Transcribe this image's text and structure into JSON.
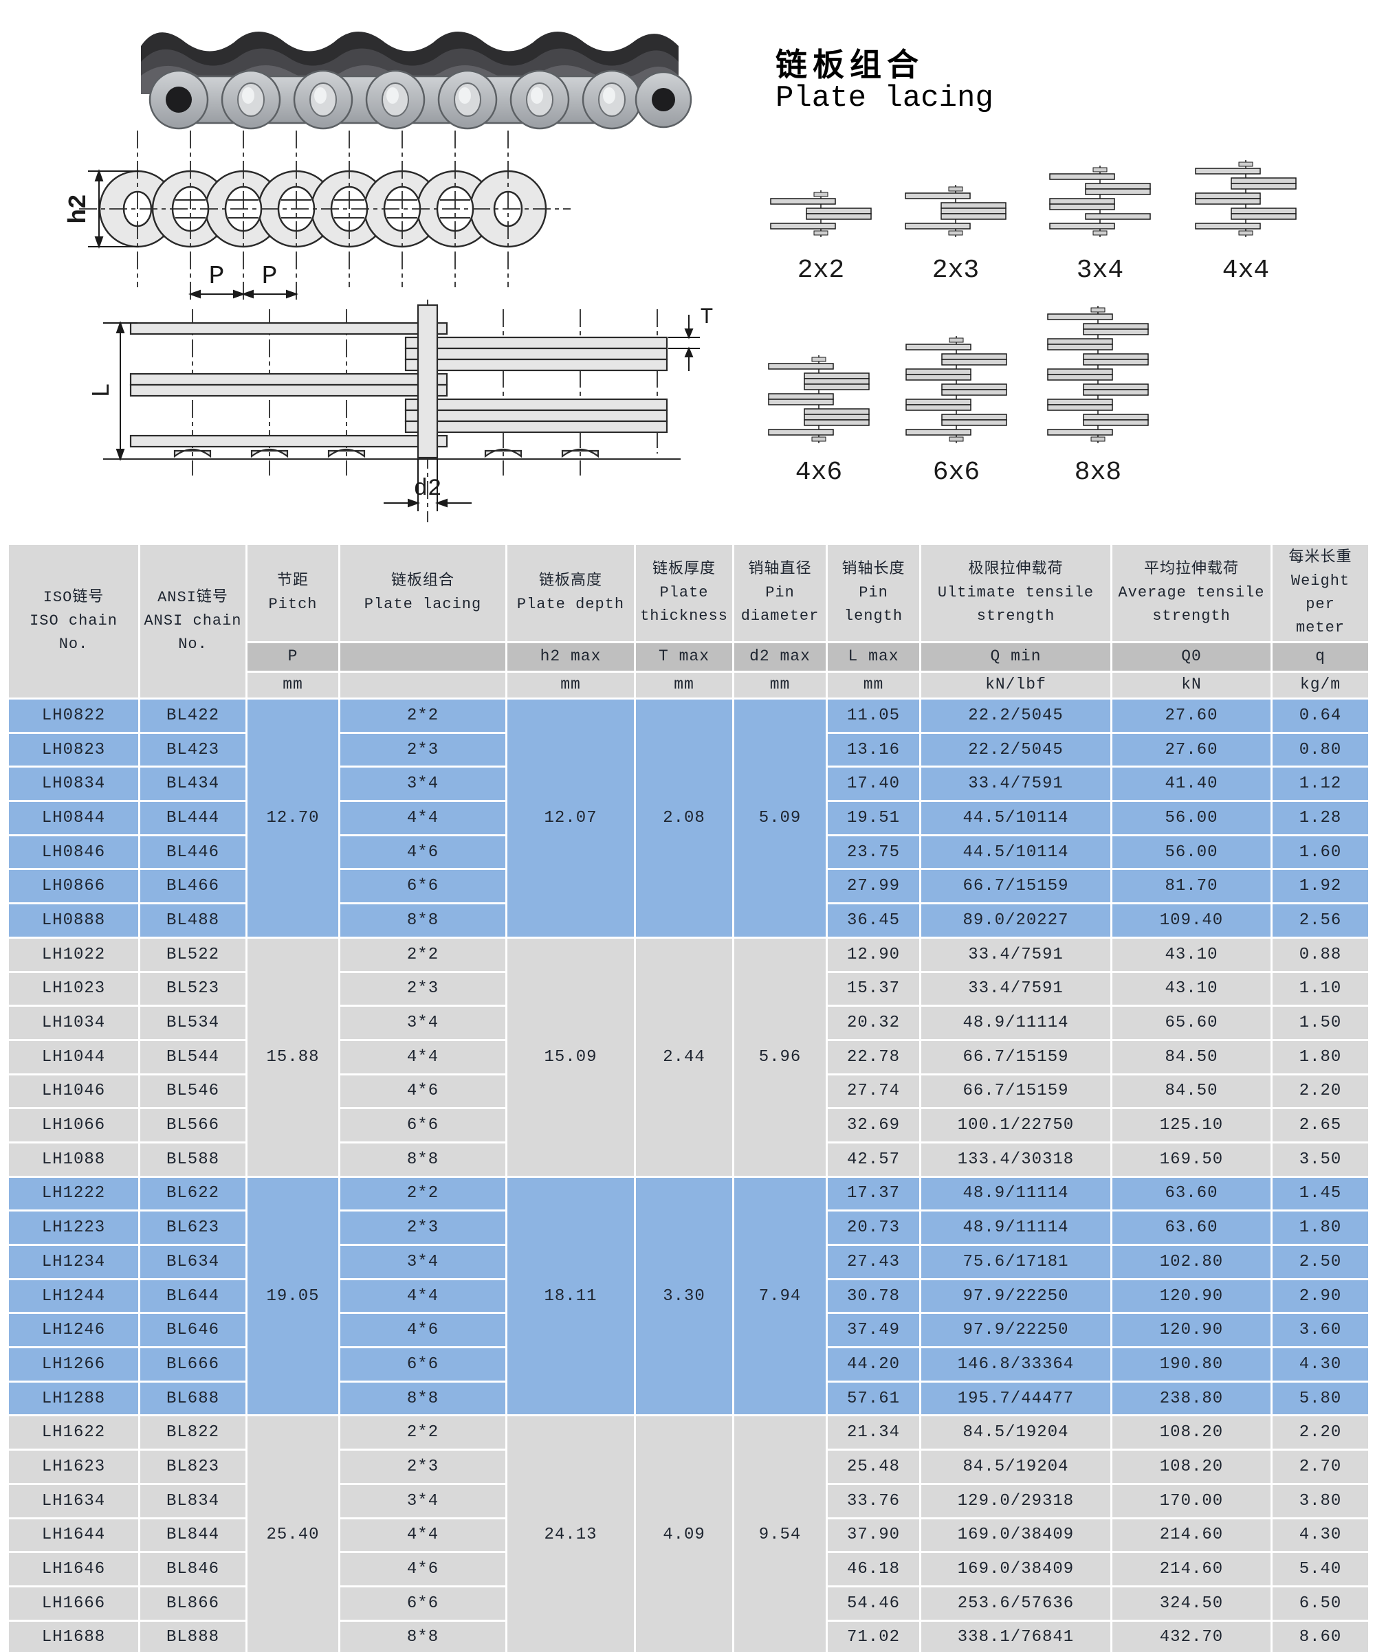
{
  "header": {
    "title_zh": "链板组合",
    "title_en": "Plate lacing"
  },
  "diagram_labels": {
    "h2": "h2",
    "p_left": "P",
    "p_right": "P",
    "L": "L",
    "d2": "d2",
    "T": "T"
  },
  "lacing": {
    "items": [
      {
        "label": "2x2",
        "row": 1,
        "pattern": [
          [
            "L",
            1
          ],
          [
            "R",
            2
          ],
          [
            "L",
            1
          ]
        ]
      },
      {
        "label": "2x3",
        "row": 1,
        "pattern": [
          [
            "L",
            1
          ],
          [
            "R",
            3
          ],
          [
            "L",
            1
          ]
        ]
      },
      {
        "label": "3x4",
        "row": 1,
        "pattern": [
          [
            "L",
            1
          ],
          [
            "R",
            2
          ],
          [
            "L",
            2
          ],
          [
            "R",
            1
          ],
          [
            "L",
            1
          ]
        ]
      },
      {
        "label": "4x4",
        "row": 1,
        "pattern": [
          [
            "L",
            1
          ],
          [
            "R",
            2
          ],
          [
            "L",
            2
          ],
          [
            "R",
            2
          ],
          [
            "L",
            1
          ]
        ]
      },
      {
        "label": "4x6",
        "row": 2,
        "pattern": [
          [
            "L",
            1
          ],
          [
            "R",
            3
          ],
          [
            "L",
            2
          ],
          [
            "R",
            3
          ],
          [
            "L",
            1
          ]
        ]
      },
      {
        "label": "6x6",
        "row": 2,
        "pattern": [
          [
            "L",
            1
          ],
          [
            "R",
            2
          ],
          [
            "L",
            2
          ],
          [
            "R",
            2
          ],
          [
            "L",
            2
          ],
          [
            "R",
            2
          ],
          [
            "L",
            1
          ]
        ]
      },
      {
        "label": "8x8",
        "row": 2,
        "pattern": [
          [
            "L",
            1
          ],
          [
            "R",
            2
          ],
          [
            "L",
            2
          ],
          [
            "R",
            2
          ],
          [
            "L",
            2
          ],
          [
            "R",
            2
          ],
          [
            "L",
            2
          ],
          [
            "R",
            2
          ],
          [
            "L",
            1
          ]
        ]
      }
    ]
  },
  "table": {
    "columns": [
      {
        "id": "iso",
        "lines": [
          "ISO链号",
          "ISO chain",
          "No."
        ],
        "sub": "",
        "unit": ""
      },
      {
        "id": "ansi",
        "lines": [
          "ANSI链号",
          "ANSI chain",
          "No."
        ],
        "sub": "",
        "unit": ""
      },
      {
        "id": "pitch",
        "lines": [
          "节距",
          "Pitch"
        ],
        "sub": "P",
        "unit": "mm"
      },
      {
        "id": "lacing",
        "lines": [
          "链板组合",
          "Plate lacing"
        ],
        "sub": "",
        "unit": ""
      },
      {
        "id": "depth",
        "lines": [
          "链板高度",
          "Plate depth"
        ],
        "sub": "h2 max",
        "unit": "mm"
      },
      {
        "id": "thickness",
        "lines": [
          "链板厚度",
          "Plate",
          "thickness"
        ],
        "sub": "T max",
        "unit": "mm"
      },
      {
        "id": "diameter",
        "lines": [
          "销轴直径",
          "Pin",
          "diameter"
        ],
        "sub": "d2 max",
        "unit": "mm"
      },
      {
        "id": "length",
        "lines": [
          "销轴长度",
          "Pin",
          "length"
        ],
        "sub": "L max",
        "unit": "mm"
      },
      {
        "id": "ultimate",
        "lines": [
          "极限拉伸载荷",
          "Ultimate tensile",
          "strength"
        ],
        "sub": "Q min",
        "unit": "kN/lbf"
      },
      {
        "id": "average",
        "lines": [
          "平均拉伸载荷",
          "Average tensile",
          "strength"
        ],
        "sub": "Q0",
        "unit": "kN"
      },
      {
        "id": "weight",
        "lines": [
          "每米长重",
          "Weight per",
          "meter"
        ],
        "sub": "q",
        "unit": "kg/m"
      }
    ],
    "groups": [
      {
        "highlight": true,
        "pitch": "12.70",
        "plate_depth": "12.07",
        "plate_thickness": "2.08",
        "pin_diameter": "5.09",
        "rows": [
          {
            "iso": "LH0822",
            "ansi": "BL422",
            "lacing": "2*2",
            "pin_length": "11.05",
            "q_min": "22.2/5045",
            "q0": "27.60",
            "q": "0.64"
          },
          {
            "iso": "LH0823",
            "ansi": "BL423",
            "lacing": "2*3",
            "pin_length": "13.16",
            "q_min": "22.2/5045",
            "q0": "27.60",
            "q": "0.80"
          },
          {
            "iso": "LH0834",
            "ansi": "BL434",
            "lacing": "3*4",
            "pin_length": "17.40",
            "q_min": "33.4/7591",
            "q0": "41.40",
            "q": "1.12"
          },
          {
            "iso": "LH0844",
            "ansi": "BL444",
            "lacing": "4*4",
            "pin_length": "19.51",
            "q_min": "44.5/10114",
            "q0": "56.00",
            "q": "1.28"
          },
          {
            "iso": "LH0846",
            "ansi": "BL446",
            "lacing": "4*6",
            "pin_length": "23.75",
            "q_min": "44.5/10114",
            "q0": "56.00",
            "q": "1.60"
          },
          {
            "iso": "LH0866",
            "ansi": "BL466",
            "lacing": "6*6",
            "pin_length": "27.99",
            "q_min": "66.7/15159",
            "q0": "81.70",
            "q": "1.92"
          },
          {
            "iso": "LH0888",
            "ansi": "BL488",
            "lacing": "8*8",
            "pin_length": "36.45",
            "q_min": "89.0/20227",
            "q0": "109.40",
            "q": "2.56"
          }
        ]
      },
      {
        "highlight": false,
        "pitch": "15.88",
        "plate_depth": "15.09",
        "plate_thickness": "2.44",
        "pin_diameter": "5.96",
        "rows": [
          {
            "iso": "LH1022",
            "ansi": "BL522",
            "lacing": "2*2",
            "pin_length": "12.90",
            "q_min": "33.4/7591",
            "q0": "43.10",
            "q": "0.88"
          },
          {
            "iso": "LH1023",
            "ansi": "BL523",
            "lacing": "2*3",
            "pin_length": "15.37",
            "q_min": "33.4/7591",
            "q0": "43.10",
            "q": "1.10"
          },
          {
            "iso": "LH1034",
            "ansi": "BL534",
            "lacing": "3*4",
            "pin_length": "20.32",
            "q_min": "48.9/11114",
            "q0": "65.60",
            "q": "1.50"
          },
          {
            "iso": "LH1044",
            "ansi": "BL544",
            "lacing": "4*4",
            "pin_length": "22.78",
            "q_min": "66.7/15159",
            "q0": "84.50",
            "q": "1.80"
          },
          {
            "iso": "LH1046",
            "ansi": "BL546",
            "lacing": "4*6",
            "pin_length": "27.74",
            "q_min": "66.7/15159",
            "q0": "84.50",
            "q": "2.20"
          },
          {
            "iso": "LH1066",
            "ansi": "BL566",
            "lacing": "6*6",
            "pin_length": "32.69",
            "q_min": "100.1/22750",
            "q0": "125.10",
            "q": "2.65"
          },
          {
            "iso": "LH1088",
            "ansi": "BL588",
            "lacing": "8*8",
            "pin_length": "42.57",
            "q_min": "133.4/30318",
            "q0": "169.50",
            "q": "3.50"
          }
        ]
      },
      {
        "highlight": true,
        "pitch": "19.05",
        "plate_depth": "18.11",
        "plate_thickness": "3.30",
        "pin_diameter": "7.94",
        "rows": [
          {
            "iso": "LH1222",
            "ansi": "BL622",
            "lacing": "2*2",
            "pin_length": "17.37",
            "q_min": "48.9/11114",
            "q0": "63.60",
            "q": "1.45"
          },
          {
            "iso": "LH1223",
            "ansi": "BL623",
            "lacing": "2*3",
            "pin_length": "20.73",
            "q_min": "48.9/11114",
            "q0": "63.60",
            "q": "1.80"
          },
          {
            "iso": "LH1234",
            "ansi": "BL634",
            "lacing": "3*4",
            "pin_length": "27.43",
            "q_min": "75.6/17181",
            "q0": "102.80",
            "q": "2.50"
          },
          {
            "iso": "LH1244",
            "ansi": "BL644",
            "lacing": "4*4",
            "pin_length": "30.78",
            "q_min": "97.9/22250",
            "q0": "120.90",
            "q": "2.90"
          },
          {
            "iso": "LH1246",
            "ansi": "BL646",
            "lacing": "4*6",
            "pin_length": "37.49",
            "q_min": "97.9/22250",
            "q0": "120.90",
            "q": "3.60"
          },
          {
            "iso": "LH1266",
            "ansi": "BL666",
            "lacing": "6*6",
            "pin_length": "44.20",
            "q_min": "146.8/33364",
            "q0": "190.80",
            "q": "4.30"
          },
          {
            "iso": "LH1288",
            "ansi": "BL688",
            "lacing": "8*8",
            "pin_length": "57.61",
            "q_min": "195.7/44477",
            "q0": "238.80",
            "q": "5.80"
          }
        ]
      },
      {
        "highlight": false,
        "pitch": "25.40",
        "plate_depth": "24.13",
        "plate_thickness": "4.09",
        "pin_diameter": "9.54",
        "rows": [
          {
            "iso": "LH1622",
            "ansi": "BL822",
            "lacing": "2*2",
            "pin_length": "21.34",
            "q_min": "84.5/19204",
            "q0": "108.20",
            "q": "2.20"
          },
          {
            "iso": "LH1623",
            "ansi": "BL823",
            "lacing": "2*3",
            "pin_length": "25.48",
            "q_min": "84.5/19204",
            "q0": "108.20",
            "q": "2.70"
          },
          {
            "iso": "LH1634",
            "ansi": "BL834",
            "lacing": "3*4",
            "pin_length": "33.76",
            "q_min": "129.0/29318",
            "q0": "170.00",
            "q": "3.80"
          },
          {
            "iso": "LH1644",
            "ansi": "BL844",
            "lacing": "4*4",
            "pin_length": "37.90",
            "q_min": "169.0/38409",
            "q0": "214.60",
            "q": "4.30"
          },
          {
            "iso": "LH1646",
            "ansi": "BL846",
            "lacing": "4*6",
            "pin_length": "46.18",
            "q_min": "169.0/38409",
            "q0": "214.60",
            "q": "5.40"
          },
          {
            "iso": "LH1666",
            "ansi": "BL866",
            "lacing": "6*6",
            "pin_length": "54.46",
            "q_min": "253.6/57636",
            "q0": "324.50",
            "q": "6.50"
          },
          {
            "iso": "LH1688",
            "ansi": "BL888",
            "lacing": "8*8",
            "pin_length": "71.02",
            "q_min": "338.1/76841",
            "q0": "432.70",
            "q": "8.60"
          }
        ]
      }
    ]
  },
  "colors": {
    "row_blue": "#8db4e2",
    "row_gray": "#d9d9d9",
    "header_gray": "#d9d9d9",
    "subheader_gray": "#bfbfbf",
    "border": "#ffffff",
    "text": "#1e2530"
  }
}
